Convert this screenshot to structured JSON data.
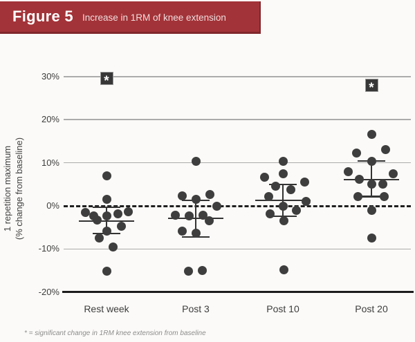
{
  "header": {
    "figure_label": "Figure 5",
    "title": "Increase in 1RM of knee extension"
  },
  "footnote": "* = significant change in 1RM knee extension from baseline",
  "colors": {
    "banner": "#A23338",
    "banner_border": "#81282D",
    "dot": "#3E3E3E",
    "gridline": "#ABABAB",
    "axis_black": "#1C1C1C",
    "sig_box": "#373737"
  },
  "chart_data": {
    "type": "scatter",
    "title": "Increase in 1RM of knee extension",
    "ylabel_line1": "1 repetition maximum",
    "ylabel_line2": "(% change from baseline)",
    "ylim": [
      -20,
      30
    ],
    "grid": true,
    "yticks": [
      {
        "label": "30%",
        "value": 30
      },
      {
        "label": "20%",
        "value": 20
      },
      {
        "label": "10%",
        "value": 10
      },
      {
        "label": "0%",
        "value": 0
      },
      {
        "label": "-10%",
        "value": -10
      },
      {
        "label": "-20%",
        "value": -20
      }
    ],
    "zero_line_dashed": true,
    "categories": [
      "Rest week",
      "Post 3",
      "Post 10",
      "Post 20"
    ],
    "groups": [
      {
        "label": "Rest week",
        "significant": true,
        "sig_marker_value": 29.6,
        "mean": -3.5,
        "upper_whisker": -0.3,
        "lower_whisker": -6.4,
        "points": [
          [
            0,
            6.9
          ],
          [
            0,
            1.6
          ],
          [
            -31,
            -1.5
          ],
          [
            -19,
            -2.4
          ],
          [
            -14,
            -3.3
          ],
          [
            0,
            -2.4
          ],
          [
            16,
            -1.9
          ],
          [
            31,
            -1.4
          ],
          [
            21,
            -4.8
          ],
          [
            0,
            -5.9
          ],
          [
            -11,
            -7.5
          ],
          [
            9,
            -9.5
          ],
          [
            0,
            -15.1
          ]
        ]
      },
      {
        "label": "Post 3",
        "significant": false,
        "sig_marker_value": null,
        "mean": -2.9,
        "upper_whisker": 1.3,
        "lower_whisker": -7.2,
        "points": [
          [
            0,
            10.4
          ],
          [
            -20,
            2.4
          ],
          [
            0,
            1.6
          ],
          [
            20,
            2.6
          ],
          [
            30,
            0.0
          ],
          [
            -30,
            -2.2
          ],
          [
            -10,
            -2.4
          ],
          [
            10,
            -2.2
          ],
          [
            19,
            -3.5
          ],
          [
            -20,
            -5.9
          ],
          [
            0,
            -6.3
          ],
          [
            -11,
            -15.2
          ],
          [
            9,
            -15.0
          ]
        ]
      },
      {
        "label": "Post 10",
        "significant": false,
        "sig_marker_value": null,
        "mean": 1.3,
        "upper_whisker": 5.0,
        "lower_whisker": -2.4,
        "points": [
          [
            0,
            10.4
          ],
          [
            0,
            7.4
          ],
          [
            -27,
            6.6
          ],
          [
            31,
            5.6
          ],
          [
            -11,
            4.5
          ],
          [
            11,
            3.7
          ],
          [
            -21,
            2.1
          ],
          [
            33,
            1.0
          ],
          [
            0,
            0.0
          ],
          [
            19,
            -1.1
          ],
          [
            -19,
            -1.9
          ],
          [
            1,
            -3.5
          ],
          [
            1,
            -14.8
          ]
        ]
      },
      {
        "label": "Post 20",
        "significant": true,
        "sig_marker_value": 27.9,
        "mean": 6.1,
        "upper_whisker": 10.4,
        "lower_whisker": 2.2,
        "points": [
          [
            0,
            16.6
          ],
          [
            20,
            13.0
          ],
          [
            -22,
            12.3
          ],
          [
            0,
            10.4
          ],
          [
            -34,
            8.0
          ],
          [
            31,
            7.5
          ],
          [
            -18,
            6.1
          ],
          [
            0,
            5.0
          ],
          [
            16,
            5.1
          ],
          [
            -20,
            2.2
          ],
          [
            18,
            2.2
          ],
          [
            0,
            -1.1
          ],
          [
            0,
            -7.5
          ]
        ]
      }
    ]
  }
}
